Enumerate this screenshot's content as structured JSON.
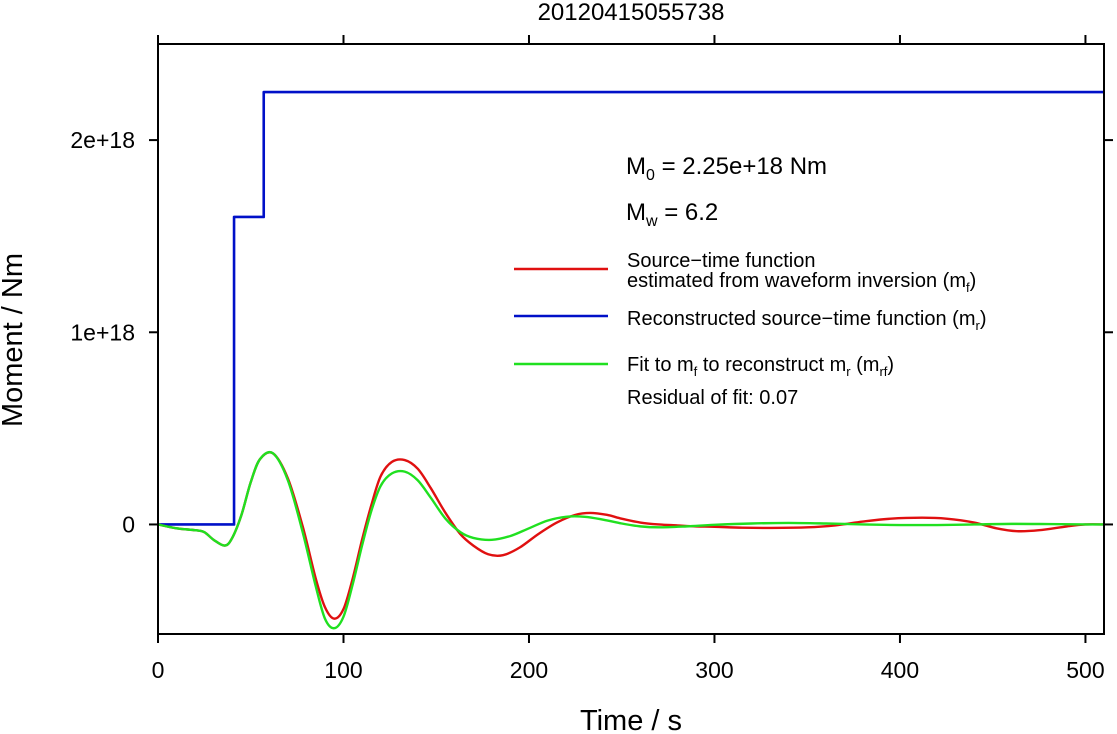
{
  "chart_data": {
    "type": "line",
    "title": "20120415055738",
    "xlabel": "Time / s",
    "ylabel": "Moment / Nm",
    "xlim": [
      0,
      510
    ],
    "ylim": [
      -5.7e+17,
      2.5e+18
    ],
    "x_ticks": [
      {
        "value": 0,
        "label": "0"
      },
      {
        "value": 100,
        "label": "100"
      },
      {
        "value": 200,
        "label": "200"
      },
      {
        "value": 300,
        "label": "300"
      },
      {
        "value": 400,
        "label": "400"
      },
      {
        "value": 500,
        "label": "500"
      }
    ],
    "y_ticks": [
      {
        "value": 0,
        "label": "0"
      },
      {
        "value": 1e+18,
        "label": "1e+18"
      },
      {
        "value": 2e+18,
        "label": "2e+18"
      }
    ],
    "grid": false,
    "legend_position": "right",
    "annotations": {
      "m0": {
        "sym": "M",
        "sub": "0",
        "rest": " = 2.25e+18 Nm"
      },
      "mw": {
        "sym": "M",
        "sub": "w",
        "rest": " = 6.2"
      },
      "residual": "Residual of fit: 0.07"
    },
    "legend": [
      {
        "name": "mf",
        "color": "#e01010",
        "line1": "Source−time function",
        "line2": "estimated from waveform inversion (m",
        "sub": "f",
        "close": ")"
      },
      {
        "name": "mr",
        "color": "#0010c8",
        "line1": "Reconstructed source−time function (m",
        "sub": "r",
        "close": ")"
      },
      {
        "name": "mrf",
        "color": "#20e020",
        "pre": "Fit to m",
        "sub1": "f",
        "mid": " to reconstruct m",
        "sub2": "r",
        "mid2": " (m",
        "sub3": "rf",
        "close": ")"
      }
    ],
    "series": [
      {
        "name": "mr",
        "color": "#0010c8",
        "step": true,
        "x": [
          0,
          41,
          41,
          57,
          57,
          510
        ],
        "y": [
          0,
          0,
          1.6e+18,
          1.6e+18,
          2.25e+18,
          2.25e+18
        ]
      },
      {
        "name": "mf",
        "color": "#e01010",
        "x": [
          0,
          10,
          20,
          25,
          30,
          36,
          40,
          45,
          50,
          55,
          62,
          70,
          78,
          85,
          90,
          95,
          100,
          105,
          110,
          115,
          120,
          126,
          133,
          140,
          147,
          155,
          163,
          170,
          178,
          186,
          195,
          205,
          215,
          225,
          233,
          242,
          250,
          260,
          270,
          280,
          290,
          300,
          315,
          330,
          350,
          365,
          380,
          395,
          412,
          425,
          440,
          452,
          463,
          475,
          490,
          500,
          510
        ],
        "y": [
          0,
          -2e+16,
          -3e+16,
          -4e+16,
          -8e+16,
          -1.1e+17,
          -7e+16,
          5e+16,
          2.2e+17,
          3.4e+17,
          3.7e+17,
          2.4e+17,
          -1e+16,
          -2.8e+17,
          -4.3e+17,
          -4.9e+17,
          -4.4e+17,
          -2.8e+17,
          -8e+16,
          1e+17,
          2.5e+17,
          3.25e+17,
          3.35e+17,
          2.9e+17,
          1.9e+17,
          6e+16,
          -5e+16,
          -1.1e+17,
          -1.55e+17,
          -1.6e+17,
          -1.2e+17,
          -5e+16,
          1e+16,
          5e+16,
          6e+16,
          5e+16,
          3e+16,
          1e+16,
          0,
          -5000000000000000.0,
          -1e+16,
          -1.2e+16,
          -1.7e+16,
          -1.8e+16,
          -1.5e+16,
          -5000000000000000.0,
          1.5e+16,
          3e+16,
          3.5e+16,
          3e+16,
          1e+16,
          -2e+16,
          -3.5e+16,
          -3e+16,
          -1e+16,
          0,
          0
        ]
      },
      {
        "name": "mrf",
        "color": "#20e020",
        "x": [
          0,
          10,
          20,
          25,
          30,
          36,
          40,
          45,
          50,
          55,
          62,
          70,
          78,
          85,
          90,
          95,
          100,
          105,
          110,
          115,
          120,
          126,
          133,
          140,
          147,
          155,
          163,
          170,
          180,
          190,
          200,
          210,
          220,
          230,
          240,
          250,
          260,
          270,
          285,
          300,
          320,
          340,
          360,
          380,
          400,
          420,
          440,
          460,
          480,
          500,
          510
        ],
        "y": [
          0,
          -2e+16,
          -3e+16,
          -4e+16,
          -8e+16,
          -1.1e+17,
          -7e+16,
          5e+16,
          2.2e+17,
          3.4e+17,
          3.7e+17,
          2.3e+17,
          -4e+16,
          -3.2e+17,
          -4.9e+17,
          -5.4e+17,
          -4.8e+17,
          -3.1e+17,
          -1.1e+17,
          7e+16,
          2e+17,
          2.65e+17,
          2.75e+17,
          2.3e+17,
          1.4e+17,
          3e+16,
          -4e+16,
          -7e+16,
          -8e+16,
          -6e+16,
          -2e+16,
          2e+16,
          4e+16,
          4e+16,
          2.5e+16,
          5000000000000000.0,
          -1e+16,
          -1.5e+16,
          -1e+16,
          -2000000000000000.0,
          5000000000000000.0,
          8000000000000000.0,
          5000000000000000.0,
          0,
          -3000000000000000.0,
          -3000000000000000.0,
          0,
          3000000000000000.0,
          2000000000000000.0,
          0,
          0
        ]
      }
    ]
  }
}
